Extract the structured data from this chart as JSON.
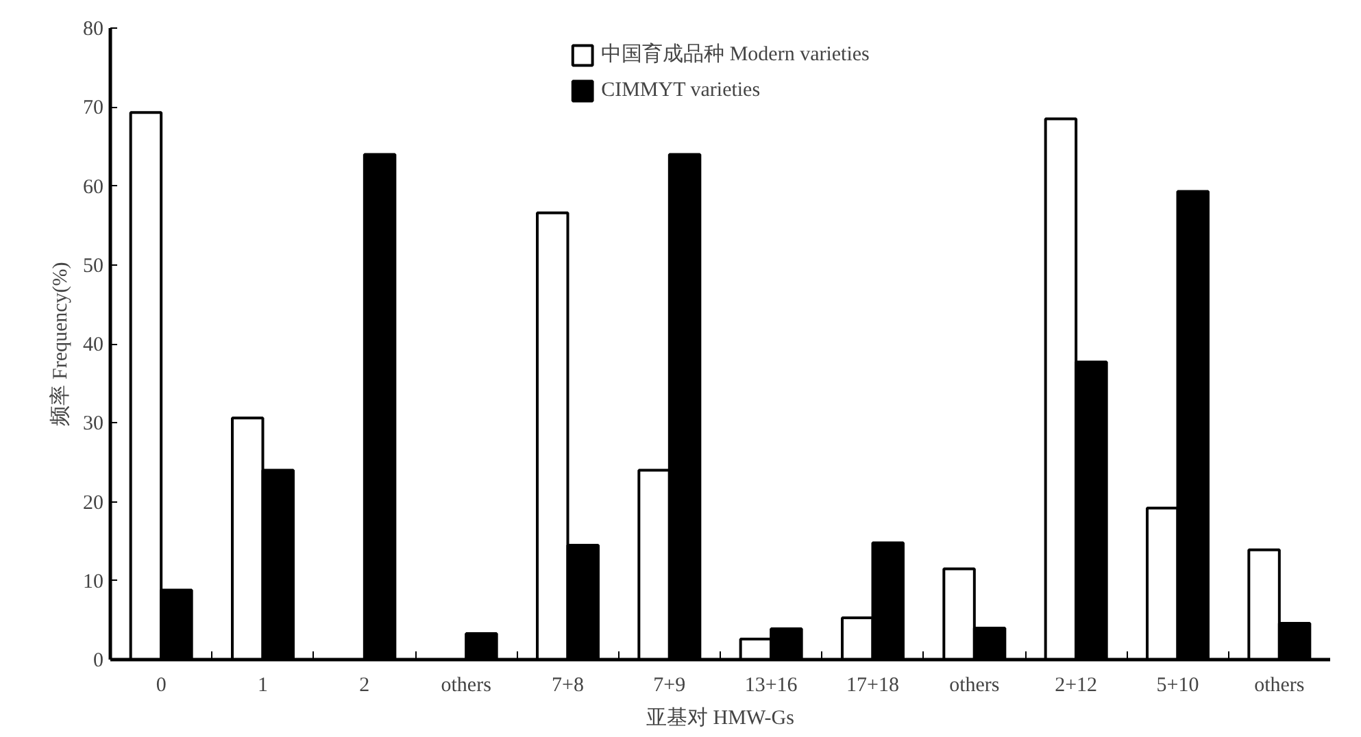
{
  "chart_data": {
    "type": "bar",
    "xlabel": "亚基对 HMW-Gs",
    "ylabel": "频率 Frequency(%)",
    "categories": [
      "0",
      "1",
      "2",
      "others",
      "7+8",
      "7+9",
      "13+16",
      "17+18",
      "others",
      "2+12",
      "5+10",
      "others"
    ],
    "series": [
      {
        "name": "中国育成品种 Modern varieties",
        "color": "#ffffff",
        "values": [
          69.3,
          30.6,
          null,
          null,
          56.6,
          24,
          2.6,
          5.3,
          11.5,
          68.5,
          19.2,
          13.9
        ]
      },
      {
        "name": "CIMMYT varieties",
        "color": "#000000",
        "values": [
          8.8,
          24,
          64,
          3.3,
          14.5,
          64,
          3.9,
          14.8,
          4.0,
          37.7,
          59.3,
          4.6
        ]
      }
    ],
    "ylim": [
      0,
      80
    ],
    "yticks": [
      0,
      10,
      20,
      30,
      40,
      50,
      60,
      70,
      80
    ],
    "grid": false,
    "legend": "top"
  }
}
